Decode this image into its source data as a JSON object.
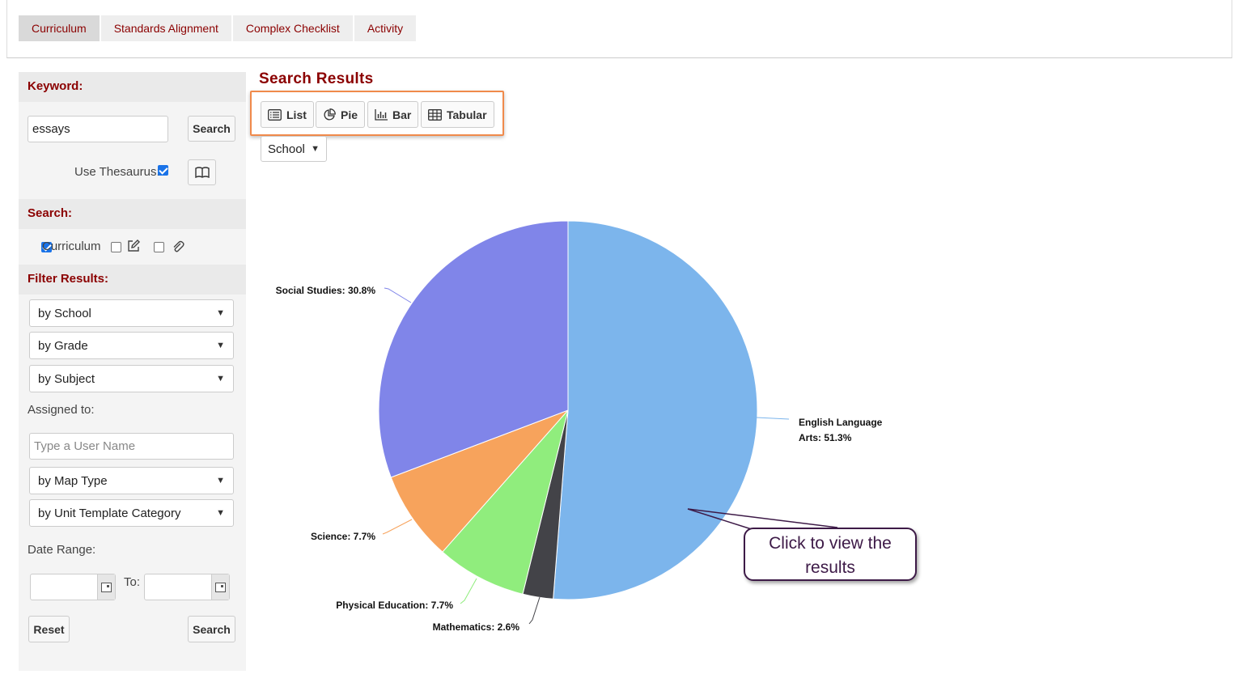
{
  "tabs": [
    {
      "label": "Curriculum",
      "active": true
    },
    {
      "label": "Standards Alignment",
      "active": false
    },
    {
      "label": "Complex Checklist",
      "active": false
    },
    {
      "label": "Activity",
      "active": false
    }
  ],
  "sidebar": {
    "keyword_heading": "Keyword:",
    "keyword_value": "essays",
    "search_button": "Search",
    "use_thesaurus_label": "Use Thesaurus:",
    "use_thesaurus_checked": true,
    "search_heading": "Search:",
    "curriculum_label": "Curriculum",
    "curriculum_checked": true,
    "filter_heading": "Filter Results:",
    "filters": {
      "school": "by School",
      "grade": "by Grade",
      "subject": "by Subject",
      "map_type": "by Map Type",
      "unit_template": "by Unit Template Category"
    },
    "assigned_to_label": "Assigned to:",
    "user_name_placeholder": "Type a User Name",
    "date_range_label": "Date Range:",
    "to_label": "To:",
    "reset_button": "Reset",
    "search_button_bottom": "Search"
  },
  "results": {
    "title": "Search Results",
    "view_buttons": [
      "List",
      "Pie",
      "Bar",
      "Tabular"
    ],
    "group_by": "School"
  },
  "callout": {
    "text": "Click to view the results"
  },
  "chart_data": {
    "type": "pie",
    "slices": [
      {
        "name": "English Language Arts",
        "value": 51.3,
        "label_lines": [
          "English Language",
          "Arts: 51.3%"
        ],
        "color": "#7cb5ec"
      },
      {
        "name": "Mathematics",
        "value": 2.6,
        "label_lines": [
          "Mathematics: 2.6%"
        ],
        "color": "#434348"
      },
      {
        "name": "Physical Education",
        "value": 7.7,
        "label_lines": [
          "Physical Education: 7.7%"
        ],
        "color": "#90ed7d"
      },
      {
        "name": "Science",
        "value": 7.7,
        "label_lines": [
          "Science: 7.7%"
        ],
        "color": "#f7a35c"
      },
      {
        "name": "Social Studies",
        "value": 30.8,
        "label_lines": [
          "Social Studies: 30.8%"
        ],
        "color": "#8085e9"
      }
    ]
  }
}
